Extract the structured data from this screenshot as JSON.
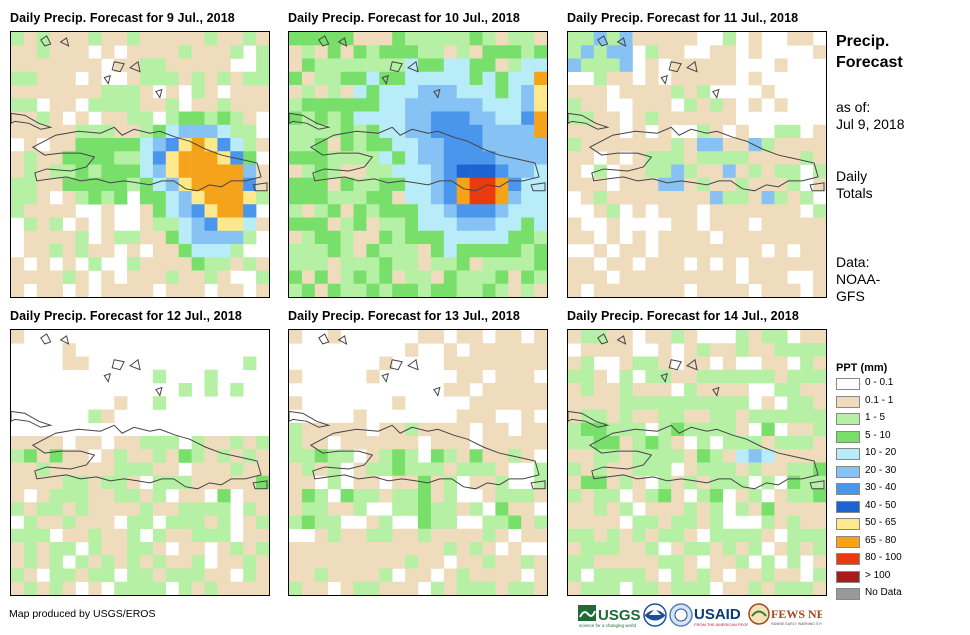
{
  "panels": [
    {
      "title": "Daily Precip. Forecast for 9 Jul., 2018",
      "day": 0
    },
    {
      "title": "Daily Precip. Forecast for 10 Jul., 2018",
      "day": 1
    },
    {
      "title": "Daily Precip. Forecast for 11 Jul., 2018",
      "day": 2
    },
    {
      "title": "Daily Precip. Forecast for 12 Jul., 2018",
      "day": 3
    },
    {
      "title": "Daily Precip. Forecast for 13 Jul., 2018",
      "day": 4
    },
    {
      "title": "Daily Precip. Forecast for 14 Jul., 2018",
      "day": 5
    }
  ],
  "sidebar": {
    "title_line1": "Precip.",
    "title_line2": "Forecast",
    "asof_label": "as of:",
    "asof_date": "Jul 9, 2018",
    "totals_line1": "Daily",
    "totals_line2": "Totals",
    "data_label": "Data:",
    "data_source_line1": "NOAA-",
    "data_source_line2": "GFS"
  },
  "legend": {
    "title": "PPT (mm)",
    "items": [
      {
        "label": "0 - 0.1",
        "color": "#ffffff"
      },
      {
        "label": "0.1 - 1",
        "color": "#eedcbd"
      },
      {
        "label": "1 - 5",
        "color": "#b5f0a5"
      },
      {
        "label": "5 - 10",
        "color": "#78e06a"
      },
      {
        "label": "10 - 20",
        "color": "#b8ecf8"
      },
      {
        "label": "20 - 30",
        "color": "#86c2f4"
      },
      {
        "label": "30 - 40",
        "color": "#4a96ec"
      },
      {
        "label": "40 - 50",
        "color": "#1e63d2"
      },
      {
        "label": "50 - 65",
        "color": "#fde98c"
      },
      {
        "label": "65 - 80",
        "color": "#f5a31a"
      },
      {
        "label": "80 - 100",
        "color": "#ec3a10"
      },
      {
        "label": "> 100",
        "color": "#a81b1b"
      },
      {
        "label": "No Data",
        "color": "#999999"
      }
    ]
  },
  "footer": {
    "credit": "Map produced by USGS/EROS",
    "logos": [
      "USGS",
      "NOAA",
      "USAID",
      "FEWS NET"
    ]
  }
}
